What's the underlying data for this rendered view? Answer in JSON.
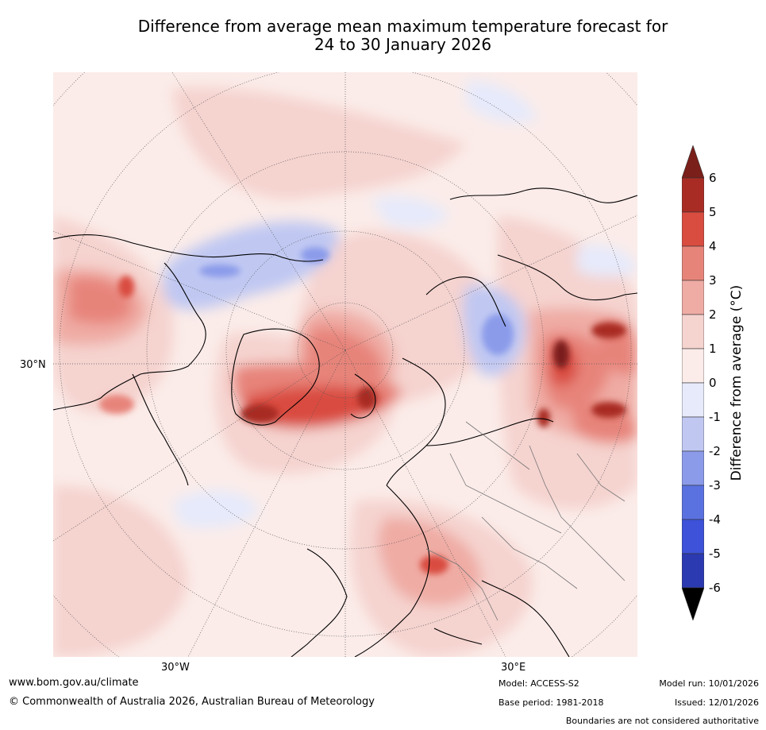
{
  "title": {
    "line1": "Difference from average mean maximum temperature forecast for",
    "line2": "24 to 30 January 2026"
  },
  "map": {
    "labels": {
      "lat_30n": "30°N",
      "lon_30w": "30°W",
      "lon_30e": "30°E"
    }
  },
  "colorbar": {
    "title": "Difference from average (°C)",
    "ticks": [
      "6",
      "5",
      "4",
      "3",
      "2",
      "1",
      "0",
      "-1",
      "-2",
      "-3",
      "-4",
      "-5",
      "-6"
    ],
    "colors": {
      "above_6": "#7a1f1a",
      "5_6": "#a82c24",
      "4_5": "#d94c40",
      "3_4": "#e7847a",
      "2_3": "#efaca4",
      "1_2": "#f5d3cf",
      "0_1": "#fbece9",
      "-1_0": "#e6eafb",
      "-2_-1": "#c0c8f2",
      "-3_-2": "#8b9bea",
      "-4_-3": "#5a72e0",
      "-5_-4": "#3d52d8",
      "-6_-5": "#2b3ab0",
      "below_-6": "#1f2a7a"
    }
  },
  "footer": {
    "website": "www.bom.gov.au/climate",
    "copyright": "© Commonwealth of Australia 2026, Australian Bureau of Meteorology",
    "model": "Model: ACCESS-S2",
    "base_period": "Base period: 1981-2018",
    "model_run": "Model run: 10/01/2026",
    "issued": "Issued: 12/01/2026",
    "disclaimer": "Boundaries are not considered authoritative"
  }
}
